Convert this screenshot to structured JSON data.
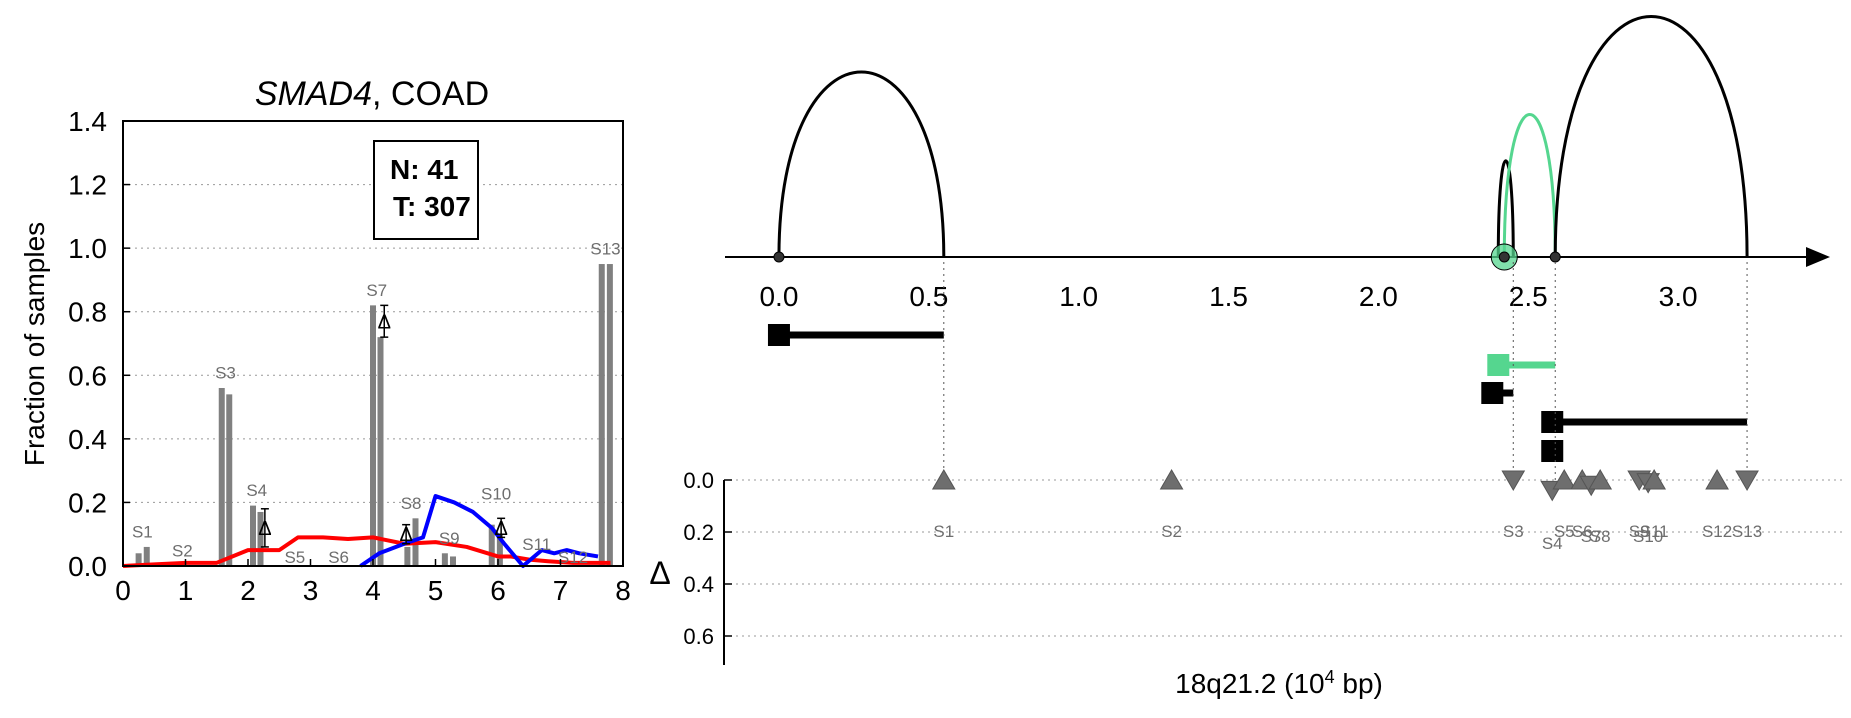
{
  "colors": {
    "bar": "#808080",
    "normal_line": "#ff0000",
    "tumor_line": "#0000ff",
    "isoform_highlight": "#55d68f",
    "marker": "#6e6e6e",
    "axis": "#000000",
    "grid": "#999999"
  },
  "chart_data": [
    {
      "type": "bar",
      "title_gene": "SMAD4",
      "title_suffix": ", COAD",
      "xlabel": "",
      "ylabel": "Fraction of samples",
      "xlim": [
        0,
        8
      ],
      "ylim": [
        0,
        1.4
      ],
      "xticks": [
        "0",
        "1",
        "2",
        "3",
        "4",
        "5",
        "6",
        "7",
        "8"
      ],
      "yticks": [
        "0.0",
        "0.2",
        "0.4",
        "0.6",
        "0.8",
        "1.0",
        "1.2",
        "1.4"
      ],
      "grid": "horizontal dotted",
      "legend_box": {
        "lines": [
          "N: 41",
          "T: 307"
        ],
        "placement": "top-center"
      },
      "bars": [
        {
          "x": 0.25,
          "value": 0.04
        },
        {
          "x": 0.38,
          "value": 0.06
        },
        {
          "x": 1.58,
          "value": 0.56
        },
        {
          "x": 1.7,
          "value": 0.54
        },
        {
          "x": 2.08,
          "value": 0.19
        },
        {
          "x": 2.2,
          "value": 0.17
        },
        {
          "x": 4.0,
          "value": 0.82
        },
        {
          "x": 4.12,
          "value": 0.72
        },
        {
          "x": 4.55,
          "value": 0.06
        },
        {
          "x": 4.68,
          "value": 0.15
        },
        {
          "x": 5.15,
          "value": 0.04
        },
        {
          "x": 5.28,
          "value": 0.03
        },
        {
          "x": 5.9,
          "value": 0.13
        },
        {
          "x": 6.03,
          "value": 0.1
        },
        {
          "x": 7.66,
          "value": 0.95
        },
        {
          "x": 7.79,
          "value": 0.95
        }
      ],
      "bar_labels": [
        {
          "label": "S1",
          "x": 0.31,
          "y": 0.09
        },
        {
          "label": "S2",
          "x": 0.95,
          "y": 0.03
        },
        {
          "label": "S3",
          "x": 1.64,
          "y": 0.59
        },
        {
          "label": "S4",
          "x": 2.14,
          "y": 0.22
        },
        {
          "label": "S5",
          "x": 2.75,
          "y": 0.01
        },
        {
          "label": "S6",
          "x": 3.45,
          "y": 0.01
        },
        {
          "label": "S7",
          "x": 4.06,
          "y": 0.85
        },
        {
          "label": "S8",
          "x": 4.61,
          "y": 0.18
        },
        {
          "label": "S9",
          "x": 5.22,
          "y": 0.07
        },
        {
          "label": "S10",
          "x": 5.97,
          "y": 0.21
        },
        {
          "label": "S11",
          "x": 6.62,
          "y": 0.05
        },
        {
          "label": "S12",
          "x": 7.2,
          "y": 0.01
        },
        {
          "label": "S13",
          "x": 7.72,
          "y": 0.98
        }
      ],
      "delta_markers": [
        {
          "label": "Δ",
          "x": 2.27,
          "y": 0.12,
          "err": 0.06
        },
        {
          "label": "Δ",
          "x": 4.18,
          "y": 0.77,
          "err": 0.05
        },
        {
          "label": "Δ",
          "x": 4.53,
          "y": 0.1,
          "err": 0.03
        },
        {
          "label": "Δ",
          "x": 6.05,
          "y": 0.12,
          "err": 0.03
        }
      ],
      "series": [
        {
          "name": "",
          "color_key": "normal_line",
          "x": [
            0.0,
            0.5,
            1.0,
            1.5,
            2.0,
            2.5,
            2.8,
            3.2,
            3.6,
            4.0,
            4.5,
            5.0,
            5.5,
            6.0,
            6.2,
            6.5,
            6.8,
            7.2,
            7.6,
            7.8
          ],
          "y": [
            0.0,
            0.005,
            0.01,
            0.01,
            0.05,
            0.05,
            0.09,
            0.09,
            0.085,
            0.09,
            0.07,
            0.075,
            0.06,
            0.03,
            0.03,
            0.02,
            0.015,
            0.01,
            0.01,
            0.01
          ]
        },
        {
          "name": "",
          "color_key": "tumor_line",
          "x": [
            3.8,
            4.1,
            4.5,
            4.8,
            5.0,
            5.3,
            5.6,
            5.9,
            6.1,
            6.4,
            6.7,
            6.9,
            7.1,
            7.3,
            7.6
          ],
          "y": [
            0.0,
            0.04,
            0.07,
            0.09,
            0.22,
            0.2,
            0.17,
            0.12,
            0.07,
            0.0,
            0.05,
            0.04,
            0.05,
            0.04,
            0.03
          ]
        }
      ]
    },
    {
      "type": "diagram",
      "xlabel_prefix": "18q21.2 (10",
      "xlabel_exp": "4",
      "xlabel_suffix": " bp)",
      "xlim": [
        -0.18,
        3.45
      ],
      "xticks": [
        "0.0",
        "0.5",
        "1.0",
        "1.5",
        "2.0",
        "2.5",
        "3.0"
      ],
      "ylabel": "Δ",
      "ylim": [
        0,
        0.7
      ],
      "yticks": [
        "0.0",
        "0.2",
        "0.4",
        "0.6"
      ],
      "nodes": [
        {
          "x": 0.0
        },
        {
          "x": 2.42,
          "highlight": true
        },
        {
          "x": 2.59
        }
      ],
      "arcs": [
        {
          "x1": 0.0,
          "x2": 0.55,
          "height": 1.0,
          "color_key": "axis"
        },
        {
          "x1": 2.4,
          "x2": 2.45,
          "height": 0.52,
          "color_key": "axis"
        },
        {
          "x1": 2.42,
          "x2": 2.59,
          "height": 0.77,
          "color_key": "isoform_highlight"
        },
        {
          "x1": 2.59,
          "x2": 3.23,
          "height": 1.3,
          "color_key": "axis"
        }
      ],
      "isoforms": [
        {
          "start": -0.03,
          "end": 0.55,
          "row": 0,
          "color_key": "axis"
        },
        {
          "start": 2.37,
          "end": 2.59,
          "row": 1,
          "color_key": "isoform_highlight"
        },
        {
          "start": 2.35,
          "end": 2.45,
          "row": 2,
          "color_key": "axis"
        },
        {
          "start": 2.55,
          "end": 3.23,
          "row": 3,
          "color_key": "axis"
        },
        {
          "start": 2.55,
          "end": 2.55,
          "row": 4,
          "color_key": "axis"
        }
      ],
      "markers": [
        {
          "label": "S1",
          "x": 0.55,
          "delta": 0.0,
          "dir": "up"
        },
        {
          "label": "S2",
          "x": 1.31,
          "delta": 0.0,
          "dir": "up"
        },
        {
          "label": "S3",
          "x": 2.45,
          "delta": 0.0,
          "dir": "down"
        },
        {
          "label": "S4",
          "x": 2.58,
          "delta": 0.04,
          "dir": "down"
        },
        {
          "label": "S5",
          "x": 2.62,
          "delta": 0.0,
          "dir": "up"
        },
        {
          "label": "S6",
          "x": 2.68,
          "delta": 0.0,
          "dir": "up"
        },
        {
          "label": "S7",
          "x": 2.71,
          "delta": 0.02,
          "dir": "down"
        },
        {
          "label": "S8",
          "x": 2.74,
          "delta": 0.0,
          "dir": "up"
        },
        {
          "label": "S9",
          "x": 2.87,
          "delta": 0.0,
          "dir": "down"
        },
        {
          "label": "S10",
          "x": 2.9,
          "delta": 0.01,
          "dir": "down"
        },
        {
          "label": "S11",
          "x": 2.92,
          "delta": 0.0,
          "dir": "up"
        },
        {
          "label": "S12",
          "x": 3.13,
          "delta": 0.0,
          "dir": "up"
        },
        {
          "label": "S13",
          "x": 3.23,
          "delta": 0.0,
          "dir": "down"
        }
      ]
    }
  ]
}
